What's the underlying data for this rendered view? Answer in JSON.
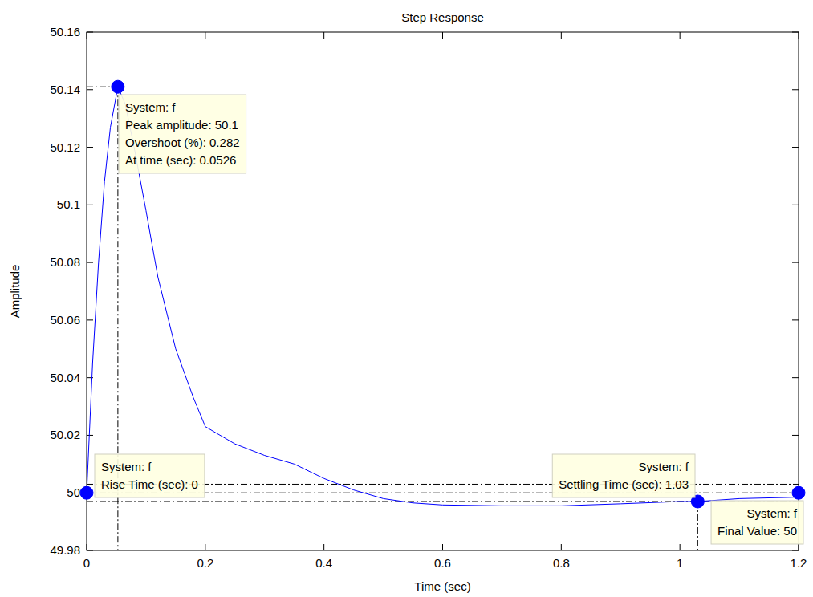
{
  "chart_data": {
    "type": "line",
    "title": "Step Response",
    "x_label": "Time (sec)",
    "y_label": "Amplitude",
    "x": [
      0,
      0.01,
      0.02,
      0.03,
      0.04,
      0.0526,
      0.065,
      0.08,
      0.1,
      0.12,
      0.15,
      0.18,
      0.2,
      0.25,
      0.3,
      0.35,
      0.4,
      0.45,
      0.5,
      0.55,
      0.6,
      0.7,
      0.8,
      0.9,
      1.0,
      1.03,
      1.1,
      1.2
    ],
    "series": [
      {
        "name": "f",
        "color": "#0000ff",
        "line_style": "solid",
        "values": [
          50.0,
          50.045,
          50.08,
          50.108,
          50.127,
          50.141,
          50.135,
          50.12,
          50.098,
          50.075,
          50.05,
          50.033,
          50.023,
          50.017,
          50.013,
          50.01,
          50.005,
          50.001,
          49.998,
          49.9965,
          49.9958,
          49.9955,
          49.9955,
          49.9962,
          49.997,
          49.997,
          49.998,
          49.9985
        ]
      }
    ],
    "xlim": [
      0,
      1.2
    ],
    "ylim": [
      49.98,
      50.16
    ],
    "xticks": [
      0,
      0.2,
      0.4,
      0.6,
      0.8,
      1,
      1.2
    ],
    "yticks": [
      49.98,
      50,
      50.02,
      50.04,
      50.06,
      50.08,
      50.1,
      50.12,
      50.14,
      50.16
    ],
    "grid": false,
    "settling_band": [
      49.997,
      50.003
    ],
    "annotations": [
      {
        "x": 0.0526,
        "y": 50.141,
        "lines": [
          "System: f",
          "Peak amplitude: 50.1",
          "Overshoot (%): 0.282",
          "At time (sec): 0.0526"
        ]
      },
      {
        "x": 0,
        "y": 50,
        "lines": [
          "System: f",
          "Rise Time (sec): 0"
        ]
      },
      {
        "x": 1.03,
        "y": 49.997,
        "lines": [
          "System: f",
          "Settling Time (sec): 1.03"
        ]
      },
      {
        "x": 1.2,
        "y": 50,
        "lines": [
          "System: f",
          "Final Value: 50"
        ]
      }
    ]
  }
}
